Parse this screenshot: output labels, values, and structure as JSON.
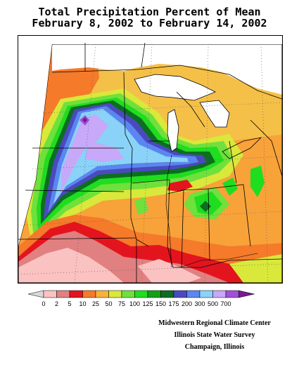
{
  "title": {
    "line1": "Total Precipitation Percent of Mean",
    "line2": "February 8, 2002 to February 14, 2002"
  },
  "legend": {
    "labels": [
      "0",
      "2",
      "5",
      "10",
      "25",
      "50",
      "75",
      "100",
      "125",
      "150",
      "175",
      "200",
      "300",
      "500",
      "700"
    ],
    "colors": [
      "#d9d9d9",
      "#fbc2c2",
      "#e08080",
      "#e4141e",
      "#f57a2a",
      "#f8b23a",
      "#d9e83a",
      "#6fe03c",
      "#1fdd1f",
      "#14a014",
      "#0c6e20",
      "#4a4ac0",
      "#5b86f0",
      "#8ad2f8",
      "#c8a8f8",
      "#a050d8",
      "#7a1a90"
    ]
  },
  "credits": {
    "line1": "Midwestern Regional Climate Center",
    "line2": "Illinois State Water Survey",
    "line3": "Champaign, Illinois"
  }
}
